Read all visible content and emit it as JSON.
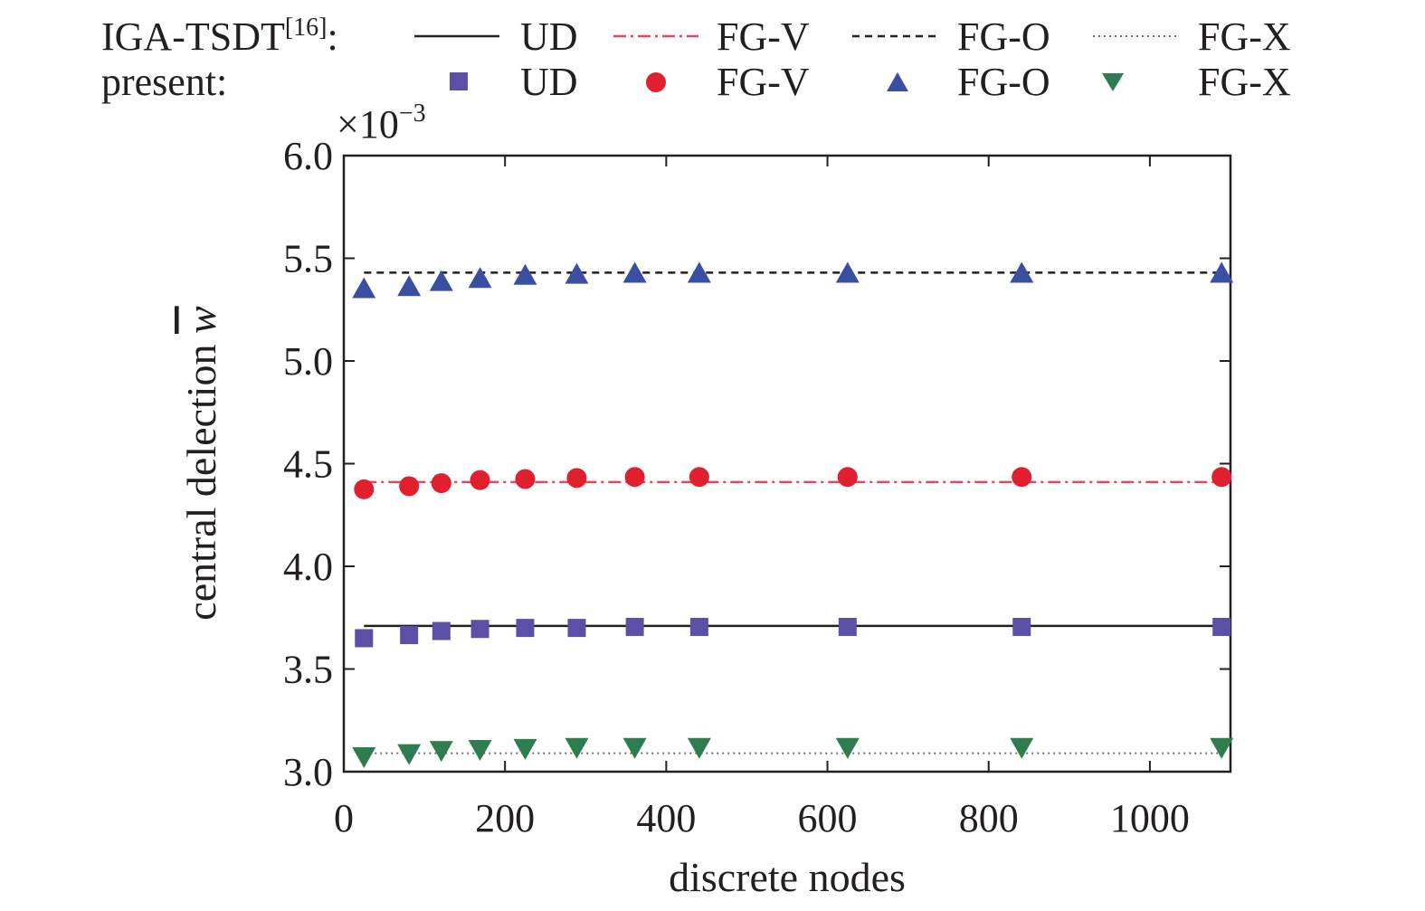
{
  "chart_data": {
    "type": "line",
    "xlabel": "discrete nodes",
    "ylabel": "central delection",
    "ylabel_symbol": "w",
    "y_multiplier_base": "×10",
    "y_multiplier_exp": "−3",
    "xlim": [
      0,
      1100
    ],
    "ylim": [
      3.0,
      6.0
    ],
    "x_ticks": [
      0,
      200,
      400,
      600,
      800,
      1000
    ],
    "x_tick_labels": [
      "0",
      "200",
      "400",
      "600",
      "800",
      "1000"
    ],
    "y_ticks": [
      3.0,
      3.5,
      4.0,
      4.5,
      5.0,
      5.5,
      6.0
    ],
    "y_tick_labels": [
      "3.0",
      "3.5",
      "4.0",
      "4.5",
      "5.0",
      "5.5",
      "6.0"
    ],
    "grid": false,
    "legend_position": "top",
    "legend": {
      "row1_title": "IGA-TSDT",
      "row1_ref": "[16]",
      "row1_colon": ":",
      "row2_title": "present:",
      "labels": [
        "UD",
        "FG-V",
        "FG-O",
        "FG-X"
      ]
    },
    "x": [
      25,
      81,
      121,
      169,
      225,
      289,
      361,
      441,
      625,
      841,
      1089
    ],
    "reference_lines": [
      {
        "name": "UD",
        "value": 3.71,
        "color": "#231f20",
        "dash": "solid"
      },
      {
        "name": "FG-V",
        "value": 4.41,
        "color": "#e8465a",
        "dash": "dashdot"
      },
      {
        "name": "FG-O",
        "value": 5.43,
        "color": "#231f20",
        "dash": "dashed"
      },
      {
        "name": "FG-X",
        "value": 3.09,
        "color": "#6d6e71",
        "dash": "dotted"
      }
    ],
    "series": [
      {
        "name": "UD",
        "marker": "square",
        "color": "#5b4fa8",
        "values": [
          3.65,
          3.665,
          3.685,
          3.695,
          3.7,
          3.7,
          3.705,
          3.705,
          3.705,
          3.705,
          3.705
        ]
      },
      {
        "name": "FG-V",
        "marker": "circle",
        "color": "#e0202e",
        "values": [
          4.375,
          4.39,
          4.405,
          4.42,
          4.425,
          4.43,
          4.435,
          4.435,
          4.435,
          4.435,
          4.435
        ]
      },
      {
        "name": "FG-O",
        "marker": "triangle-up",
        "color": "#3a4fa0",
        "values": [
          5.35,
          5.36,
          5.385,
          5.4,
          5.415,
          5.42,
          5.425,
          5.425,
          5.425,
          5.425,
          5.425
        ]
      },
      {
        "name": "FG-X",
        "marker": "triangle-down",
        "color": "#2e7d4f",
        "values": [
          3.075,
          3.09,
          3.105,
          3.11,
          3.115,
          3.12,
          3.12,
          3.12,
          3.12,
          3.12,
          3.12
        ]
      }
    ]
  }
}
